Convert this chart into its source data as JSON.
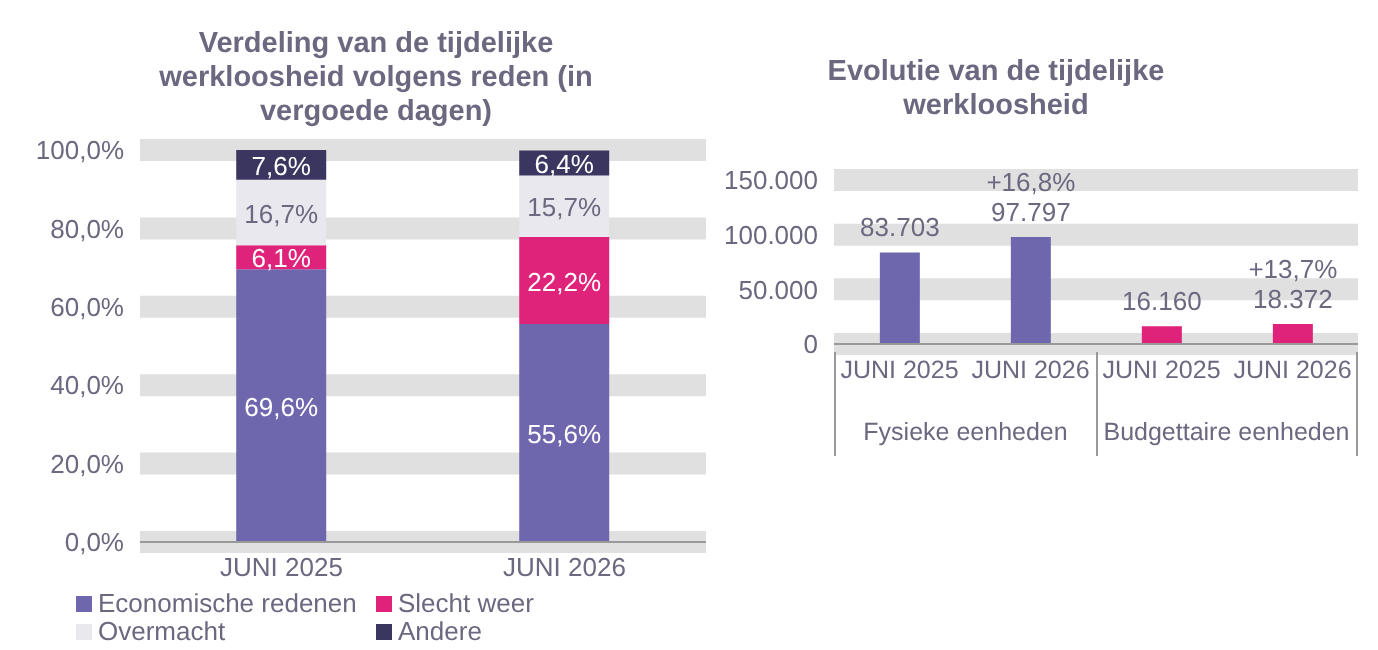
{
  "chart_data": [
    {
      "type": "bar",
      "title": "Verdeling van de tijdelijke werkloosheid volgens reden (in vergoede dagen)",
      "categories": [
        "JUNI 2025",
        "JUNI 2026"
      ],
      "stacked": true,
      "series": [
        {
          "name": "Economische redenen",
          "color": "#6e67ae",
          "values": [
            69.6,
            55.6
          ],
          "value_labels": [
            "69,6%",
            "55,6%"
          ]
        },
        {
          "name": "Slecht weer",
          "color": "#e0237a",
          "values": [
            6.1,
            22.2
          ],
          "value_labels": [
            "6,1%",
            "22,2%"
          ]
        },
        {
          "name": "Overmacht",
          "color": "#e8e8ee",
          "values": [
            16.7,
            15.7
          ],
          "value_labels": [
            "16,7%",
            "15,7%"
          ]
        },
        {
          "name": "Andere",
          "color": "#3a3660",
          "values": [
            7.6,
            6.4
          ],
          "value_labels": [
            "7,6%",
            "6,4%"
          ]
        }
      ],
      "ylim": [
        0,
        100
      ],
      "yticks": [
        {
          "value": 0,
          "label": "0,0%"
        },
        {
          "value": 20,
          "label": "20,0%"
        },
        {
          "value": 40,
          "label": "40,0%"
        },
        {
          "value": 60,
          "label": "60,0%"
        },
        {
          "value": 80,
          "label": "80,0%"
        },
        {
          "value": 100,
          "label": "100,0%"
        }
      ],
      "grid": "y",
      "legend": "bottom"
    },
    {
      "type": "bar",
      "title": "Evolutie van de tijdelijke werkloosheid",
      "categories": [
        "JUNI 2025",
        "JUNI 2026",
        "JUNI 2025",
        "JUNI 2026"
      ],
      "values": [
        83703,
        97797,
        16160,
        18372
      ],
      "colors": [
        "#6e67ae",
        "#6e67ae",
        "#e0237a",
        "#e0237a"
      ],
      "value_labels": [
        "83.703",
        "+16,8%\n97.797",
        "16.160",
        "+13,7%\n18.372"
      ],
      "annotations": [
        "Fysieke eenheden",
        "Budgettaire eenheden"
      ],
      "ylim": [
        0,
        150000
      ],
      "yticks": [
        0,
        {
          "value": 50000,
          "label": "50.000"
        },
        {
          "value": 100000,
          "label": "100.000"
        },
        {
          "value": 150000,
          "label": "150.000"
        }
      ],
      "grid": "y"
    }
  ]
}
